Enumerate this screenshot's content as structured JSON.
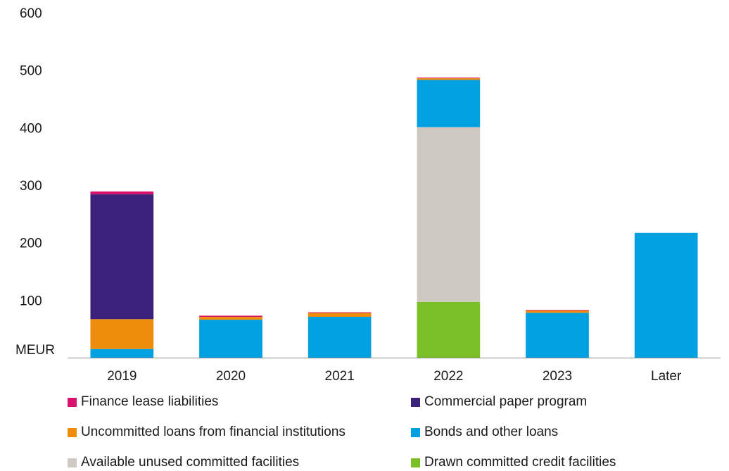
{
  "chart_data": {
    "type": "bar",
    "stacked": true,
    "categories": [
      "2019",
      "2020",
      "2021",
      "2022",
      "2023",
      "Later"
    ],
    "ylabel": "MEUR",
    "ylim": [
      0,
      600
    ],
    "yticks": [
      100,
      200,
      300,
      400,
      500,
      600
    ],
    "grid": false,
    "legend_position": "bottom",
    "series": [
      {
        "name": "Bonds and other loans",
        "color": "#00A0E1",
        "values": [
          15,
          66,
          71,
          0,
          78,
          217
        ]
      },
      {
        "name": "Drawn committed credit facilities",
        "color": "#7ABF26",
        "values": [
          0,
          0,
          0,
          97,
          0,
          0
        ]
      },
      {
        "name": "Available unused committed facilities",
        "color": "#CEC9C3",
        "values": [
          0,
          0,
          0,
          304,
          0,
          0
        ]
      },
      {
        "name": "Bonds and other loans",
        "color": "#00A0E1",
        "values": [
          0,
          0,
          0,
          82,
          0,
          0
        ]
      },
      {
        "name": "Uncommitted loans from financial institutions",
        "color": "#EE8C0C",
        "values": [
          52,
          5,
          7,
          3,
          4,
          0
        ]
      },
      {
        "name": "Commercial paper program",
        "color": "#3C217A",
        "values": [
          217,
          0,
          0,
          0,
          0,
          0
        ]
      },
      {
        "name": "Finance lease liabilities",
        "color": "#D8136F",
        "values": [
          5,
          2,
          1,
          1,
          1,
          0
        ]
      }
    ],
    "legend": [
      {
        "name": "Finance lease liabilities",
        "color": "#D8136F"
      },
      {
        "name": "Commercial paper program",
        "color": "#3C217A"
      },
      {
        "name": "Uncommitted loans from financial institutions",
        "color": "#EE8C0C"
      },
      {
        "name": "Bonds and other loans",
        "color": "#00A0E1"
      },
      {
        "name": "Available unused committed facilities",
        "color": "#CEC9C3"
      },
      {
        "name": "Drawn committed credit facilities",
        "color": "#7ABF26"
      }
    ]
  }
}
